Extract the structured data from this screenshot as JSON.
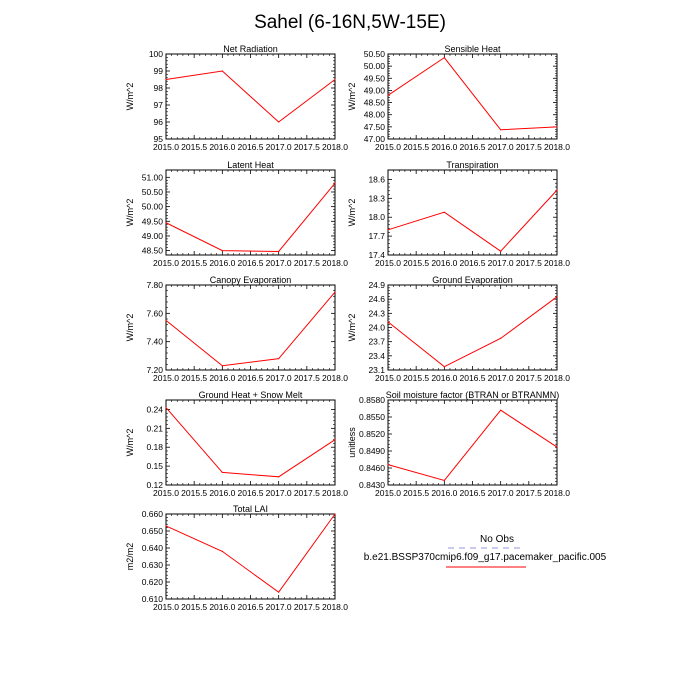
{
  "figure": {
    "title": "Sahel (6-16N,5W-15E)"
  },
  "legend": {
    "obs_label": "No Obs",
    "model_label": "b.e21.BSSP370cmip6.f09_g17.pacemaker_pacific.005",
    "obs_color": "#b8b8e8",
    "model_color": "#ff0000"
  },
  "chart_data": [
    {
      "type": "line",
      "title": "Net Radiation",
      "ylabel": "W/m^2",
      "x": [
        2015,
        2016,
        2017,
        2018
      ],
      "values": [
        98.5,
        99.0,
        96.0,
        98.5
      ],
      "xlim": [
        2015,
        2018
      ],
      "ylim": [
        95,
        100
      ],
      "yticks": [
        "95",
        "96",
        "97",
        "98",
        "99",
        "100"
      ],
      "xticks": [
        "2015.0",
        "2015.5",
        "2016.0",
        "2016.5",
        "2017.0",
        "2017.5",
        "2018.0"
      ],
      "grid": false
    },
    {
      "type": "line",
      "title": "Sensible Heat",
      "ylabel": "W/m^2",
      "x": [
        2015,
        2016,
        2017,
        2018
      ],
      "values": [
        48.8,
        50.35,
        47.38,
        47.5
      ],
      "xlim": [
        2015,
        2018
      ],
      "ylim": [
        47.0,
        50.5
      ],
      "yticks": [
        "47.00",
        "47.50",
        "48.00",
        "48.50",
        "49.00",
        "49.50",
        "50.00",
        "50.50"
      ],
      "xticks": [
        "2015.0",
        "2015.5",
        "2016.0",
        "2016.5",
        "2017.0",
        "2017.5",
        "2018.0"
      ],
      "grid": false
    },
    {
      "type": "line",
      "title": "Latent Heat",
      "ylabel": "W/m^2",
      "x": [
        2015,
        2016,
        2017,
        2018
      ],
      "values": [
        49.45,
        48.5,
        48.47,
        50.8
      ],
      "xlim": [
        2015,
        2018
      ],
      "ylim": [
        48.35,
        51.25
      ],
      "yticks": [
        "48.50",
        "49.00",
        "49.50",
        "50.00",
        "50.50",
        "51.00"
      ],
      "xticks": [
        "2015.0",
        "2015.5",
        "2016.0",
        "2016.5",
        "2017.0",
        "2017.5",
        "2018.0"
      ],
      "grid": false
    },
    {
      "type": "line",
      "title": "Transpiration",
      "ylabel": "W/m^2",
      "x": [
        2015,
        2016,
        2017,
        2018
      ],
      "values": [
        17.8,
        18.08,
        17.46,
        18.43
      ],
      "xlim": [
        2015,
        2018
      ],
      "ylim": [
        17.4,
        18.75
      ],
      "yticks": [
        "17.4",
        "17.7",
        "18.0",
        "18.3",
        "18.6"
      ],
      "xticks": [
        "2015.0",
        "2015.5",
        "2016.0",
        "2016.5",
        "2017.0",
        "2017.5",
        "2018.0"
      ],
      "grid": false
    },
    {
      "type": "line",
      "title": "Canopy Evaporation",
      "ylabel": "W/m^2",
      "x": [
        2015,
        2016,
        2017,
        2018
      ],
      "values": [
        7.55,
        7.23,
        7.28,
        7.75
      ],
      "xlim": [
        2015,
        2018
      ],
      "ylim": [
        7.2,
        7.8
      ],
      "yticks": [
        "7.20",
        "7.40",
        "7.60",
        "7.80"
      ],
      "xticks": [
        "2015.0",
        "2015.5",
        "2016.0",
        "2016.5",
        "2017.0",
        "2017.5",
        "2018.0"
      ],
      "grid": false
    },
    {
      "type": "line",
      "title": "Ground Evaporation",
      "ylabel": "W/m^2",
      "x": [
        2015,
        2016,
        2017,
        2018
      ],
      "values": [
        24.12,
        23.17,
        23.77,
        24.65
      ],
      "xlim": [
        2015,
        2018
      ],
      "ylim": [
        23.1,
        24.9
      ],
      "yticks": [
        "23.1",
        "23.4",
        "23.7",
        "24.0",
        "24.3",
        "24.6",
        "24.9"
      ],
      "xticks": [
        "2015.0",
        "2015.5",
        "2016.0",
        "2016.5",
        "2017.0",
        "2017.5",
        "2018.0"
      ],
      "grid": false
    },
    {
      "type": "line",
      "title": "Ground Heat + Snow Melt",
      "ylabel": "W/m^2",
      "x": [
        2015,
        2016,
        2017,
        2018
      ],
      "values": [
        0.243,
        0.14,
        0.133,
        0.192
      ],
      "xlim": [
        2015,
        2018
      ],
      "ylim": [
        0.12,
        0.255
      ],
      "yticks": [
        "0.12",
        "0.15",
        "0.18",
        "0.21",
        "0.24"
      ],
      "xticks": [
        "2015.0",
        "2015.5",
        "2016.0",
        "2016.5",
        "2017.0",
        "2017.5",
        "2018.0"
      ],
      "grid": false
    },
    {
      "type": "line",
      "title": "Soil moisture factor (BTRAN or BTRANMN)",
      "ylabel": "unitless",
      "x": [
        2015,
        2016,
        2017,
        2018
      ],
      "values": [
        0.8466,
        0.8438,
        0.8562,
        0.8497
      ],
      "xlim": [
        2015,
        2018
      ],
      "ylim": [
        0.843,
        0.858
      ],
      "yticks": [
        "0.8430",
        "0.8460",
        "0.8490",
        "0.8520",
        "0.8550",
        "0.8580"
      ],
      "xticks": [
        "2015.0",
        "2015.5",
        "2016.0",
        "2016.5",
        "2017.0",
        "2017.5",
        "2018.0"
      ],
      "grid": false
    },
    {
      "type": "line",
      "title": "Total LAI",
      "ylabel": "m2/m2",
      "x": [
        2015,
        2016,
        2017,
        2018
      ],
      "values": [
        0.653,
        0.638,
        0.614,
        0.66
      ],
      "xlim": [
        2015,
        2018
      ],
      "ylim": [
        0.61,
        0.66
      ],
      "yticks": [
        "0.610",
        "0.620",
        "0.630",
        "0.640",
        "0.650",
        "0.660"
      ],
      "xticks": [
        "2015.0",
        "2015.5",
        "2016.0",
        "2016.5",
        "2017.0",
        "2017.5",
        "2018.0"
      ],
      "grid": false
    }
  ]
}
